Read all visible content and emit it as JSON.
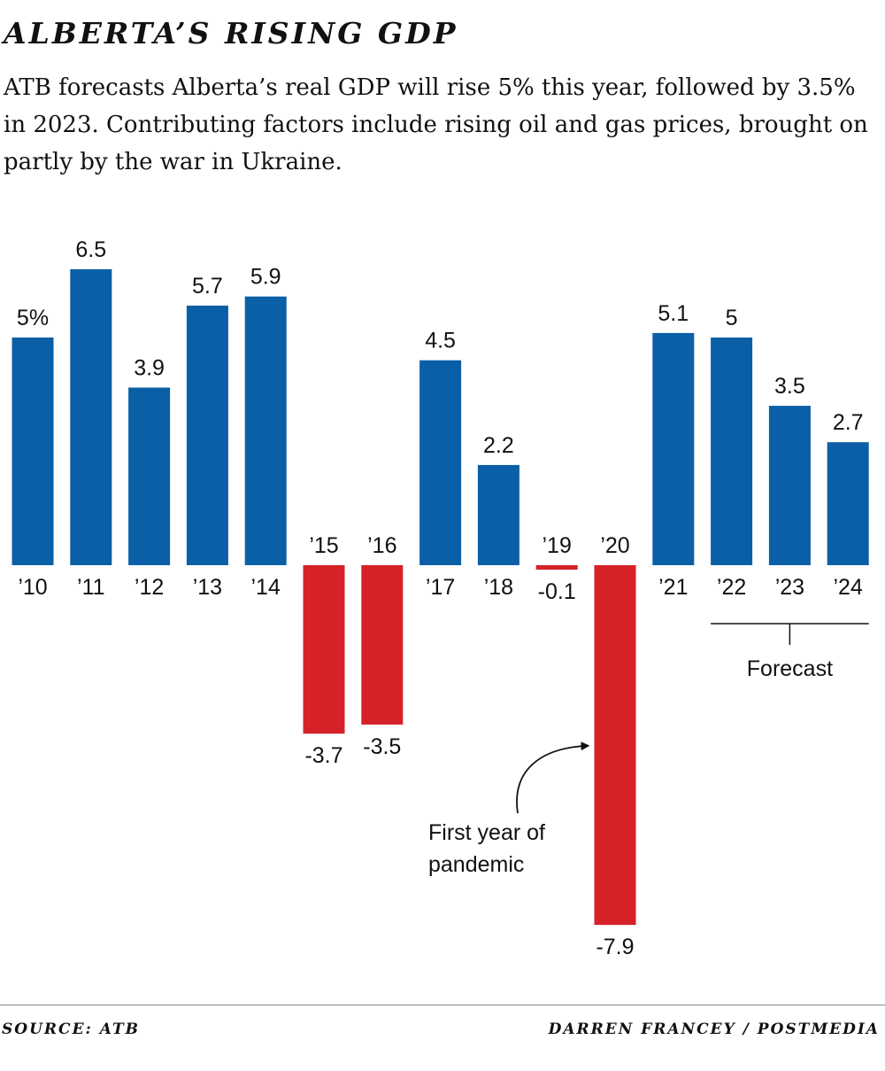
{
  "header": {
    "title": "ALBERTA’S RISING GDP",
    "subtitle": "ATB forecasts Alberta’s real GDP will rise 5% this year, followed by 3.5% in 2023. Contributing factors include rising oil and gas prices, brought on partly by the war in Ukraine."
  },
  "chart_data": {
    "type": "bar",
    "categories": [
      "’10",
      "’11",
      "’12",
      "’13",
      "’14",
      "’15",
      "’16",
      "’17",
      "’18",
      "’19",
      "’20",
      "’21",
      "’22",
      "’23",
      "’24"
    ],
    "values": [
      5,
      6.5,
      3.9,
      5.7,
      5.9,
      -3.7,
      -3.5,
      4.5,
      2.2,
      -0.1,
      -7.9,
      5.1,
      5,
      3.5,
      2.7
    ],
    "value_labels": [
      "5%",
      "6.5",
      "3.9",
      "5.7",
      "5.9",
      "-3.7",
      "-3.5",
      "4.5",
      "2.2",
      "-0.1",
      "-7.9",
      "5.1",
      "5",
      "3.5",
      "2.7"
    ],
    "ylim": [
      -7.9,
      6.5
    ],
    "grid": false,
    "legend": "none",
    "colors": {
      "positive": "#0a5fa6",
      "negative": "#d62128"
    },
    "annotations": [
      {
        "text_lines": [
          "First year of",
          "pandemic"
        ],
        "target": "’20"
      },
      {
        "text": "Forecast",
        "span": [
          "’22",
          "’24"
        ]
      }
    ]
  },
  "footer": {
    "source": "SOURCE: ATB",
    "credit": "DARREN FRANCEY / POSTMEDIA"
  }
}
